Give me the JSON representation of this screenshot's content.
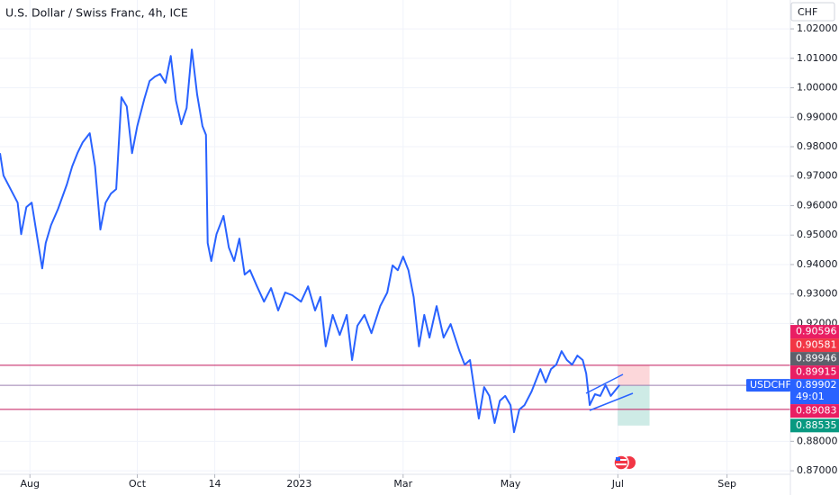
{
  "chart_data": {
    "type": "line",
    "title": "U.S. Dollar / Swiss Franc, 4h, ICE",
    "currency": "CHF",
    "x": [
      -17,
      -15,
      -11,
      -7,
      -5,
      -2,
      1,
      4,
      7,
      9,
      12,
      16,
      21,
      24,
      27,
      30,
      34,
      37,
      40,
      43,
      46,
      49,
      52,
      55,
      58,
      61,
      65,
      68,
      71,
      74,
      77,
      80,
      83,
      86,
      89,
      92,
      95,
      98,
      100,
      101,
      103,
      106,
      110,
      113,
      116,
      119,
      122,
      125,
      129,
      133,
      137,
      141,
      145,
      149,
      154,
      158,
      162,
      165,
      168,
      172,
      176,
      180,
      183,
      186,
      190,
      194,
      199,
      203,
      206,
      209,
      212,
      215,
      218,
      221,
      224,
      227,
      231,
      235,
      239,
      244,
      247,
      250,
      253,
      255,
      258,
      261,
      264,
      267,
      270,
      273,
      275,
      278,
      281,
      285,
      290,
      293,
      296,
      299,
      302,
      305,
      308,
      311,
      314,
      316,
      318,
      321,
      324,
      327,
      330,
      335
    ],
    "series": [
      {
        "name": "USDCHF",
        "color": "#2962ff",
        "values": [
          0.9778,
          0.9702,
          0.9656,
          0.961,
          0.9503,
          0.9595,
          0.961,
          0.9497,
          0.9387,
          0.9473,
          0.9534,
          0.9589,
          0.9672,
          0.9733,
          0.9778,
          0.9815,
          0.9846,
          0.9733,
          0.9519,
          0.961,
          0.9641,
          0.9656,
          0.9968,
          0.9937,
          0.9778,
          0.987,
          0.9962,
          1.0023,
          1.0038,
          1.0047,
          1.0017,
          1.0108,
          0.9956,
          0.9876,
          0.9931,
          1.013,
          0.9977,
          0.987,
          0.984,
          0.9473,
          0.9412,
          0.9503,
          0.9565,
          0.9458,
          0.9412,
          0.9488,
          0.9366,
          0.9381,
          0.9326,
          0.9274,
          0.932,
          0.9244,
          0.9305,
          0.9296,
          0.9274,
          0.9326,
          0.9244,
          0.929,
          0.9122,
          0.9229,
          0.9161,
          0.9229,
          0.9076,
          0.9192,
          0.9229,
          0.9167,
          0.9259,
          0.9305,
          0.9397,
          0.9381,
          0.9427,
          0.9381,
          0.929,
          0.9122,
          0.9229,
          0.9152,
          0.9259,
          0.9152,
          0.9198,
          0.9106,
          0.906,
          0.9076,
          0.8954,
          0.8877,
          0.8984,
          0.8954,
          0.8862,
          0.8938,
          0.8954,
          0.8923,
          0.8831,
          0.8908,
          0.8923,
          0.8969,
          0.9045,
          0.9,
          0.9045,
          0.906,
          0.9106,
          0.9076,
          0.906,
          0.9091,
          0.9076,
          0.903,
          0.8923,
          0.896,
          0.8954,
          0.8991,
          0.8954,
          0.8991
        ]
      }
    ],
    "xlim": [
      -17,
      432
    ],
    "xticks": [
      {
        "value": 0,
        "label": "Aug"
      },
      {
        "value": 61,
        "label": "Oct"
      },
      {
        "value": 105,
        "label": "14"
      },
      {
        "value": 153,
        "label": "2023"
      },
      {
        "value": 212,
        "label": "Mar"
      },
      {
        "value": 273,
        "label": "May"
      },
      {
        "value": 334,
        "label": "Jul"
      },
      {
        "value": 396,
        "label": "Sep"
      }
    ],
    "ylim": [
      0.8688,
      1.0298
    ],
    "yticks": [
      {
        "value": 1.02,
        "label": "1.02000"
      },
      {
        "value": 1.01,
        "label": "1.01000"
      },
      {
        "value": 1.0,
        "label": "1.00000"
      },
      {
        "value": 0.99,
        "label": "0.99000"
      },
      {
        "value": 0.98,
        "label": "0.98000"
      },
      {
        "value": 0.97,
        "label": "0.97000"
      },
      {
        "value": 0.96,
        "label": "0.96000"
      },
      {
        "value": 0.95,
        "label": "0.95000"
      },
      {
        "value": 0.94,
        "label": "0.94000"
      },
      {
        "value": 0.93,
        "label": "0.93000"
      },
      {
        "value": 0.92,
        "label": "0.92000"
      },
      {
        "value": 0.88,
        "label": "0.88000"
      },
      {
        "value": 0.87,
        "label": "0.87000"
      }
    ],
    "grid": true,
    "hlines": [
      {
        "value": 0.90581,
        "color": "#c2185b"
      },
      {
        "value": 0.89902,
        "color": "#9c7fb0"
      },
      {
        "value": 0.89083,
        "color": "#c2185b"
      }
    ],
    "position": {
      "x": [
        334,
        352
      ],
      "stop": 0.90581,
      "entry": 0.89902,
      "target": 0.88535
    },
    "price_labels": [
      {
        "value": 0.90596,
        "color": "#e91e63"
      },
      {
        "value": 0.90581,
        "color": "#f23645"
      },
      {
        "value": 0.89946,
        "color": "#5d606b"
      },
      {
        "value": 0.89915,
        "color": "#e91e63"
      },
      {
        "value": 0.89902,
        "color": "#2962ff",
        "countdown": "49:01"
      },
      {
        "value": 0.89083,
        "color": "#e91e63"
      },
      {
        "value": 0.88535,
        "color": "#089981"
      }
    ]
  }
}
